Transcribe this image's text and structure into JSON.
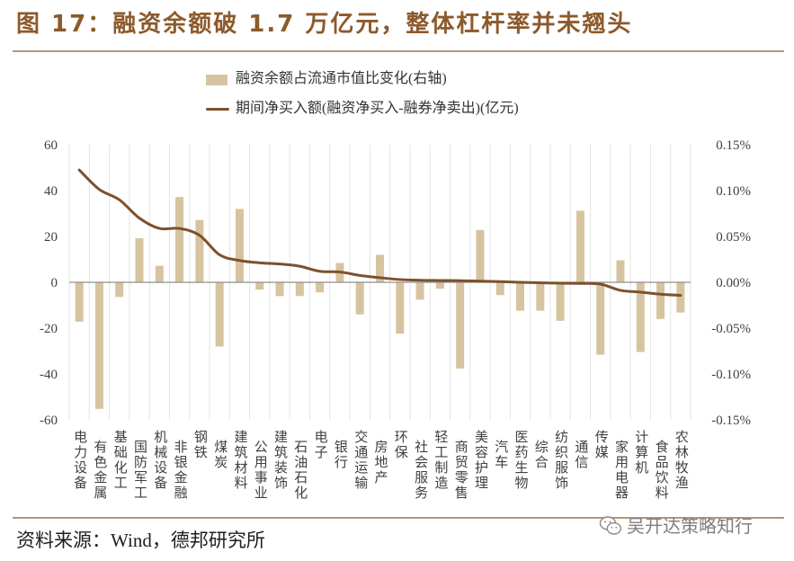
{
  "source": "资料来源：Wind，德邦研究所",
  "watermark": {
    "text": "吴开达策略知行",
    "icon": "wechat-icon"
  },
  "colors": {
    "title": "#8C5A2B",
    "rule": "#BB9670",
    "bar": "#D6C4A0",
    "line": "#7D512D",
    "grid": "#E3E3E3",
    "axis": "#8F8F8F"
  },
  "chart_data": {
    "type": "bar",
    "title": "图 17：融资余额破 1.7 万亿元，整体杠杆率并未翘头",
    "legend_position": "top-center",
    "grid": {
      "vertical": true,
      "horizontal": false
    },
    "categories": [
      "电力设备",
      "有色金属",
      "基础化工",
      "国防军工",
      "机械设备",
      "非银金融",
      "钢铁",
      "煤炭",
      "建筑材料",
      "公用事业",
      "建筑装饰",
      "石油石化",
      "电子",
      "银行",
      "交通运输",
      "房地产",
      "环保",
      "社会服务",
      "轻工制造",
      "商贸零售",
      "美容护理",
      "汽车",
      "医药生物",
      "综合",
      "纺织服饰",
      "通信",
      "传媒",
      "家用电器",
      "计算机",
      "食品饮料",
      "农林牧渔"
    ],
    "y_left": {
      "range": [
        -60,
        60
      ],
      "ticks": [
        "60",
        "40",
        "20",
        "0",
        "-20",
        "-40",
        "-60"
      ]
    },
    "y_right": {
      "range": [
        -0.15,
        0.15
      ],
      "ticks": [
        "0.15%",
        "0.10%",
        "0.05%",
        "0.00%",
        "-0.05%",
        "-0.10%",
        "-0.15%"
      ]
    },
    "series": [
      {
        "name": "融资余额占流通市值比变化(右轴)",
        "type": "bar",
        "right_axis": true,
        "values": [
          -0.043,
          -0.138,
          -0.016,
          0.048,
          0.018,
          0.093,
          0.068,
          -0.07,
          0.08,
          -0.008,
          -0.015,
          -0.015,
          -0.011,
          0.021,
          -0.035,
          0.03,
          -0.056,
          -0.019,
          -0.007,
          -0.094,
          0.057,
          -0.014,
          -0.031,
          -0.031,
          -0.042,
          0.078,
          -0.079,
          0.024,
          -0.076,
          -0.04,
          -0.033
        ]
      },
      {
        "name": "期间净买入额(融资净买入-融券净卖出)(亿元)",
        "type": "line",
        "right_axis": false,
        "values": [
          49,
          40.5,
          36,
          28,
          23.5,
          23.5,
          20.5,
          12,
          9.5,
          8.5,
          8,
          7,
          4.8,
          4.5,
          3,
          2,
          1.2,
          0.9,
          0.8,
          0.7,
          0.5,
          0.3,
          0,
          -0.2,
          -0.4,
          -0.5,
          -0.8,
          -3.5,
          -4.3,
          -5.2,
          -5.7
        ]
      }
    ]
  }
}
